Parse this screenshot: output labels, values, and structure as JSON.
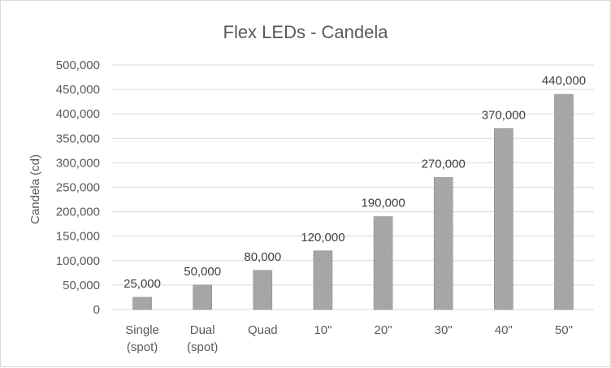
{
  "chart_data": {
    "type": "bar",
    "title": "Flex LEDs - Candela",
    "xlabel": "",
    "ylabel": "Candela (cd)",
    "categories": [
      [
        "Single",
        "(spot)"
      ],
      [
        "Dual",
        "(spot)"
      ],
      [
        "Quad"
      ],
      [
        "10\""
      ],
      [
        "20\""
      ],
      [
        "30\""
      ],
      [
        "40\""
      ],
      [
        "50\""
      ]
    ],
    "values": [
      25000,
      50000,
      80000,
      120000,
      190000,
      270000,
      370000,
      440000
    ],
    "data_labels": [
      "25,000",
      "50,000",
      "80,000",
      "120,000",
      "190,000",
      "270,000",
      "370,000",
      "440,000"
    ],
    "ylim": [
      0,
      500000
    ],
    "yticks": [
      0,
      50000,
      100000,
      150000,
      200000,
      250000,
      300000,
      350000,
      400000,
      450000,
      500000
    ],
    "ytick_labels": [
      "0",
      "50,000",
      "100,000",
      "150,000",
      "200,000",
      "250,000",
      "300,000",
      "350,000",
      "400,000",
      "450,000",
      "500,000"
    ],
    "grid": true,
    "legend": "none",
    "colors": {
      "bar": "#a6a6a6",
      "bar_edge": "#8c8c8c",
      "grid": "#d9d9d9",
      "text": "#595959"
    }
  }
}
